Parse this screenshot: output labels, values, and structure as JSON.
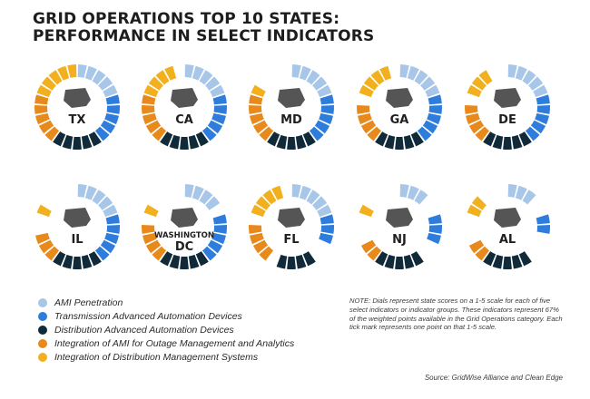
{
  "title": {
    "line1": "GRID OPERATIONS TOP 10 STATES:",
    "line2": "PERFORMANCE IN SELECT INDICATORS"
  },
  "chart_data": {
    "type": "radial-dial",
    "scale": [
      1,
      5
    ],
    "indicators": [
      {
        "name": "AMI Penetration",
        "color": "#a7c6e8"
      },
      {
        "name": "Transmission Advanced Automation Devices",
        "color": "#2e7cdb"
      },
      {
        "name": "Distribution Advanced Automation Devices",
        "color": "#112a3a"
      },
      {
        "name": "Integration of AMI for Outage Management and Analytics",
        "color": "#e8891c"
      },
      {
        "name": "Integration of Distribution Management Systems",
        "color": "#f2b01e"
      }
    ],
    "states": [
      {
        "label": "TX",
        "scores": [
          5,
          5,
          5,
          5,
          5
        ]
      },
      {
        "label": "CA",
        "scores": [
          5,
          5,
          5,
          5,
          4
        ]
      },
      {
        "label": "MD",
        "scores": [
          5,
          5,
          5,
          5,
          1
        ]
      },
      {
        "label": "GA",
        "scores": [
          5,
          5,
          5,
          4,
          4
        ]
      },
      {
        "label": "DE",
        "scores": [
          5,
          5,
          5,
          4,
          3
        ]
      },
      {
        "label": "IL",
        "scores": [
          5,
          5,
          5,
          3,
          1
        ]
      },
      {
        "label": "WASHINGTON\nDC",
        "scores": [
          4,
          5,
          5,
          4,
          1
        ]
      },
      {
        "label": "FL",
        "scores": [
          5,
          3,
          4,
          4,
          4
        ]
      },
      {
        "label": "NJ",
        "scores": [
          3,
          3,
          5,
          2,
          1
        ]
      },
      {
        "label": "AL",
        "scores": [
          3,
          2,
          5,
          2,
          2
        ]
      }
    ]
  },
  "legend": [
    "AMI Penetration",
    "Transmission Advanced Automation Devices",
    "Distribution Advanced Automation Devices",
    "Integration of AMI for Outage Management and Analytics",
    "Integration of Distribution Management Systems"
  ],
  "note": "NOTE: Dials represent state scores on a 1-5 scale for each of five select indicators or indicator groups. These indicators represent 67% of the weighted points available in the Grid Operations category. Each tick mark represents one point on that 1-5 scale.",
  "source": "Source: GridWise Alliance and Clean Edge"
}
